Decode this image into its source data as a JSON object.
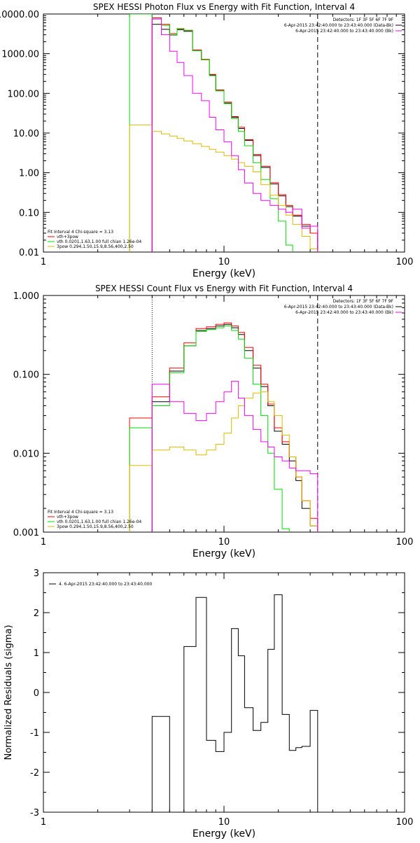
{
  "chart_data": [
    {
      "type": "line",
      "step": true,
      "title": "SPEX HESSI Photon Flux vs Energy with Fit Function, Interval 4",
      "xlabel": "Energy (keV)",
      "ylabel": "",
      "xscale": "log",
      "yscale": "log",
      "xlim": [
        1,
        100
      ],
      "ylim": [
        0.01,
        10000
      ],
      "xticks": [
        1,
        10,
        100
      ],
      "xticklabels": [
        "1",
        "10",
        "100"
      ],
      "yticks": [
        0.01,
        0.1,
        1,
        10,
        100,
        1000,
        10000
      ],
      "yticklabels": [
        "0.01",
        "0.10",
        "1.00",
        "10.00",
        "100.00",
        "1000.00",
        "10000.00"
      ],
      "vlines": [
        {
          "x": 4.0,
          "style": "solid",
          "color": "#ff00ff"
        },
        {
          "x": 33.0,
          "style": "dashed",
          "color": "#000000"
        }
      ],
      "legend_topright": [
        {
          "text": "Detectors: 1F 3F 5F 6F 7F 9F",
          "color": ""
        },
        {
          "text": "6-Apr-2015 23:42:40.000 to 23:43:40.000 (Data-Bk)",
          "color": "#000000"
        },
        {
          "text": "6-Apr-2015 23:42:40.000 to 23:43:40.000 (Bk)",
          "color": "#ff00ff"
        }
      ],
      "legend_bottomleft": [
        {
          "text": "Fit Interval 4    Chi-square = 3.13",
          "color": ""
        },
        {
          "text": "vth+3pow",
          "color": "#ff0000"
        },
        {
          "text": "vth 0.0201,1.63,1.00  full chian 1.26e-04",
          "color": "#00dd00"
        },
        {
          "text": "3pow 0.294,1.50,15.9,8.56,400,2.50",
          "color": "#ddbb00"
        }
      ],
      "edges": [
        3.0,
        4.0,
        4.5,
        5.0,
        5.5,
        6.0,
        6.7,
        7.5,
        8.3,
        9.0,
        10.0,
        11.0,
        12.0,
        13.0,
        14.5,
        16.0,
        18.0,
        20.0,
        22.0,
        24.0,
        27.0,
        30.0,
        33.0
      ],
      "series": [
        {
          "name": "",
          "color": "#000000",
          "values": [
            null,
            5500,
            4100,
            2950,
            4000,
            3650,
            1200,
            700,
            290,
            120,
            57,
            25,
            13,
            6.5,
            2.7,
            1.35,
            0.52,
            0.26,
            0.14,
            0.08,
            0.045,
            0.03
          ]
        },
        {
          "name": "",
          "color": "#ff0000",
          "values": [
            null,
            8000,
            5500,
            3200,
            4300,
            3900,
            1250,
            720,
            300,
            122,
            60,
            26,
            14,
            6.8,
            2.9,
            1.45,
            0.56,
            0.28,
            0.15,
            0.085,
            0.05,
            0.03
          ]
        },
        {
          "name": "",
          "color": "#00dd00",
          "values": [
            10000,
            7500,
            5200,
            3000,
            4200,
            3800,
            1200,
            700,
            280,
            115,
            55,
            23,
            11,
            4.8,
            1.8,
            0.68,
            0.22,
            0.06,
            0.015,
            null,
            null,
            null
          ]
        },
        {
          "name": "",
          "color": "#ddbb00",
          "values": [
            16,
            11,
            9.5,
            8.4,
            7.3,
            6.3,
            5.4,
            4.6,
            3.9,
            3.3,
            2.7,
            2.2,
            1.8,
            1.45,
            1.05,
            0.5,
            0.27,
            0.15,
            0.085,
            0.05,
            0.025,
            0.012
          ]
        },
        {
          "name": "",
          "color": "#ff00ff",
          "values": [
            null,
            7500,
            3000,
            1150,
            600,
            280,
            100,
            65,
            25,
            12,
            6,
            2.7,
            1.2,
            0.55,
            0.3,
            0.2,
            0.15,
            0.12,
            0.1,
            0.12,
            0.04,
            0.045
          ]
        }
      ]
    },
    {
      "type": "line",
      "step": true,
      "title": "SPEX HESSI Count Flux vs Energy with Fit Function, Interval 4",
      "xlabel": "Energy (keV)",
      "ylabel": "",
      "xscale": "log",
      "yscale": "log",
      "xlim": [
        1,
        100
      ],
      "ylim": [
        0.001,
        1
      ],
      "xticks": [
        1,
        10,
        100
      ],
      "xticklabels": [
        "1",
        "10",
        "100"
      ],
      "yticks": [
        0.001,
        0.01,
        0.1,
        1
      ],
      "yticklabels": [
        "0.001",
        "0.010",
        "0.100",
        "1.000"
      ],
      "vlines": [
        {
          "x": 4.0,
          "style": "dotted",
          "color": "#000000"
        },
        {
          "x": 33.0,
          "style": "dashed",
          "color": "#000000"
        }
      ],
      "legend_topright": [
        {
          "text": "Detectors: 1F 3F 5F 6F 7F 9F",
          "color": ""
        },
        {
          "text": "6-Apr-2015 23:42:40.000 to 23:43:40.000 (Data-Bk)",
          "color": "#000000"
        },
        {
          "text": "6-Apr-2015 23:42:40.000 to 23:43:40.000 (Bk)",
          "color": "#ff00ff"
        }
      ],
      "legend_bottomleft": [
        {
          "text": "Fit Interval 4    Chi-square = 3.13",
          "color": ""
        },
        {
          "text": "vth+3pow",
          "color": "#ff0000"
        },
        {
          "text": "vth 0.0201,1.63,1.00  full chian 1.26e-04",
          "color": "#00dd00"
        },
        {
          "text": "3pow 0.294,1.50,15.9,8.56,400,2.50",
          "color": "#ddbb00"
        }
      ],
      "edges": [
        3.0,
        4.0,
        5.0,
        6.0,
        7.0,
        8.0,
        9.0,
        10.0,
        11.0,
        12.0,
        13.0,
        14.5,
        16.0,
        17.5,
        19.0,
        21.0,
        23.0,
        25.0,
        27.0,
        30.0,
        33.0
      ],
      "series": [
        {
          "name": "",
          "color": "#000000",
          "values": [
            null,
            0.045,
            0.11,
            0.23,
            0.36,
            0.38,
            0.41,
            0.43,
            0.39,
            0.32,
            0.2,
            0.12,
            0.07,
            0.04,
            0.019,
            0.013,
            0.008,
            0.0045,
            0.002,
            0.0012
          ]
        },
        {
          "name": "",
          "color": "#ff0000",
          "values": [
            0.028,
            0.052,
            0.12,
            0.25,
            0.38,
            0.4,
            0.43,
            0.45,
            0.41,
            0.34,
            0.22,
            0.13,
            0.075,
            0.042,
            0.021,
            0.014,
            0.009,
            0.005,
            0.0025,
            0.0015
          ]
        },
        {
          "name": "",
          "color": "#00dd00",
          "values": [
            0.021,
            0.04,
            0.105,
            0.23,
            0.35,
            0.37,
            0.39,
            0.41,
            0.36,
            0.28,
            0.16,
            0.075,
            0.03,
            0.01,
            0.0035,
            0.0011,
            null,
            null,
            null,
            null
          ]
        },
        {
          "name": "",
          "color": "#ddbb00",
          "values": [
            0.007,
            0.011,
            0.012,
            0.011,
            0.0095,
            0.011,
            0.013,
            0.018,
            0.028,
            0.04,
            0.05,
            0.058,
            0.06,
            0.045,
            0.03,
            0.017,
            0.009,
            0.005,
            0.0025,
            0.0012
          ]
        },
        {
          "name": "",
          "color": "#ff00ff",
          "values": [
            null,
            0.075,
            0.045,
            0.032,
            0.026,
            0.032,
            0.045,
            0.06,
            0.082,
            0.05,
            0.03,
            0.02,
            0.014,
            0.012,
            0.009,
            0.008,
            0.0065,
            0.006,
            0.006,
            0.0055
          ]
        }
      ]
    },
    {
      "type": "line",
      "step": true,
      "title": "",
      "xlabel": "Energy (keV)",
      "ylabel": "Normalized Residuals (sigma)",
      "xscale": "log",
      "yscale": "linear",
      "xlim": [
        1,
        100
      ],
      "ylim": [
        -3,
        3
      ],
      "xticks": [
        1,
        10,
        100
      ],
      "xticklabels": [
        "1",
        "10",
        "100"
      ],
      "yticks": [
        -3,
        -2,
        -1,
        0,
        1,
        2,
        3
      ],
      "yticklabels": [
        "-3",
        "-2",
        "-1",
        "0",
        "1",
        "2",
        "3"
      ],
      "vlines": [],
      "legend_topleft": [
        {
          "text": "4. 6-Apr-2015 23:42:40.000 to 23:43:40.000",
          "color": "#000000"
        }
      ],
      "edges": [
        4.0,
        5.0,
        6.0,
        7.0,
        8.0,
        9.0,
        10.0,
        11.0,
        12.0,
        13.0,
        14.5,
        16.0,
        17.5,
        19.0,
        21.0,
        23.0,
        25.0,
        27.0,
        30.0,
        33.0
      ],
      "series": [
        {
          "name": "",
          "color": "#000000",
          "values": [
            -0.6,
            -3.05,
            1.15,
            2.38,
            -1.2,
            -1.48,
            -1.0,
            1.6,
            0.92,
            -0.38,
            -0.95,
            -0.75,
            1.08,
            2.45,
            -0.55,
            -1.45,
            -1.38,
            -1.35,
            -0.45
          ]
        }
      ]
    }
  ]
}
